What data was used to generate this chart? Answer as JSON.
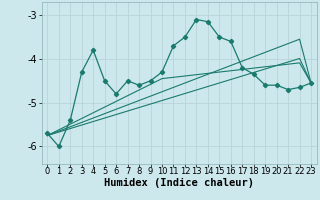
{
  "xlabel": "Humidex (Indice chaleur)",
  "bg_color": "#cce8ec",
  "grid_color": "#b8d4d8",
  "line_color": "#1a7a6e",
  "x_data": [
    0,
    1,
    2,
    3,
    4,
    5,
    6,
    7,
    8,
    9,
    10,
    11,
    12,
    13,
    14,
    15,
    16,
    17,
    18,
    19,
    20,
    21,
    22,
    23
  ],
  "y_main": [
    -5.7,
    -6.0,
    -5.4,
    -4.3,
    -3.8,
    -4.5,
    -4.8,
    -4.5,
    -4.6,
    -4.5,
    -4.3,
    -3.7,
    -3.5,
    -3.1,
    -3.15,
    -3.5,
    -3.6,
    -4.2,
    -4.35,
    -4.6,
    -4.6,
    -4.7,
    -4.65,
    -4.55
  ],
  "y_line2": [
    -5.75,
    -5.62,
    -5.49,
    -5.36,
    -5.23,
    -5.1,
    -4.97,
    -4.84,
    -4.71,
    -4.58,
    -4.45,
    -4.42,
    -4.39,
    -4.36,
    -4.33,
    -4.3,
    -4.27,
    -4.24,
    -4.21,
    -4.18,
    -4.15,
    -4.12,
    -4.09,
    -4.55
  ],
  "y_line3": [
    -5.75,
    -5.65,
    -5.55,
    -5.45,
    -5.35,
    -5.25,
    -5.15,
    -5.05,
    -4.95,
    -4.85,
    -4.75,
    -4.65,
    -4.55,
    -4.45,
    -4.35,
    -4.25,
    -4.15,
    -4.05,
    -3.95,
    -3.85,
    -3.75,
    -3.65,
    -3.55,
    -4.55
  ],
  "y_line4": [
    -5.75,
    -5.67,
    -5.59,
    -5.51,
    -5.43,
    -5.35,
    -5.27,
    -5.19,
    -5.11,
    -5.03,
    -4.95,
    -4.87,
    -4.79,
    -4.71,
    -4.63,
    -4.55,
    -4.47,
    -4.39,
    -4.31,
    -4.23,
    -4.15,
    -4.07,
    -3.99,
    -4.55
  ],
  "ylim": [
    -6.4,
    -2.7
  ],
  "xlim": [
    -0.5,
    23.5
  ],
  "yticks": [
    -6,
    -5,
    -4,
    -3
  ],
  "xticks": [
    0,
    1,
    2,
    3,
    4,
    5,
    6,
    7,
    8,
    9,
    10,
    11,
    12,
    13,
    14,
    15,
    16,
    17,
    18,
    19,
    20,
    21,
    22,
    23
  ],
  "tick_fontsize": 6.0,
  "ytick_fontsize": 7.0,
  "xlabel_fontsize": 7.5
}
